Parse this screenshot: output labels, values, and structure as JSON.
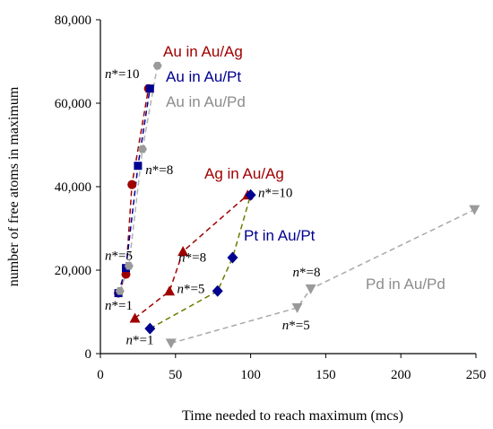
{
  "chart_data": {
    "type": "scatter",
    "xlabel": "Time needed to reach maximum (mcs)",
    "ylabel": "number of free atoms in maximum",
    "xlim": [
      0,
      250
    ],
    "ylim": [
      0,
      80000
    ],
    "x_ticks": [
      0,
      50,
      100,
      150,
      200,
      250
    ],
    "y_ticks": [
      0,
      20000,
      40000,
      60000,
      80000
    ],
    "x_tick_labels": [
      "0",
      "50",
      "100",
      "150",
      "200",
      "250"
    ],
    "y_tick_labels": [
      "0",
      "20,000",
      "40,000",
      "60,000",
      "80,000"
    ],
    "grid": false,
    "series": [
      {
        "name": "Au in Au/Ag",
        "color": "#a00000",
        "marker": "circle",
        "points": [
          [
            12,
            14500
          ],
          [
            17,
            19000
          ],
          [
            21,
            40500
          ],
          [
            32,
            63500
          ]
        ]
      },
      {
        "name": "Au in Au/Pt",
        "color": "#000090",
        "marker": "square",
        "points": [
          [
            12,
            14500
          ],
          [
            17,
            20500
          ],
          [
            25,
            45000
          ],
          [
            33,
            63500
          ]
        ]
      },
      {
        "name": "Au in Au/Pd",
        "color": "#9a9a9a",
        "marker": "hexagon",
        "points": [
          [
            13,
            15000
          ],
          [
            19,
            21000
          ],
          [
            28,
            49000
          ],
          [
            38,
            69000
          ]
        ]
      },
      {
        "name": "Ag in Au/Ag",
        "color": "#a00000",
        "marker": "triangle-up",
        "points": [
          [
            23,
            8500
          ],
          [
            46,
            15000
          ],
          [
            55,
            24500
          ],
          [
            98,
            38000
          ]
        ]
      },
      {
        "name": "Pt in Au/Pt",
        "color": "#000090",
        "marker": "diamond",
        "points": [
          [
            33,
            6000
          ],
          [
            78,
            15000
          ],
          [
            88,
            23000
          ],
          [
            100,
            38000
          ]
        ]
      },
      {
        "name": "Pd in Au/Pd",
        "color": "#9a9a9a",
        "marker": "triangle-down",
        "points": [
          [
            47,
            2500
          ],
          [
            131,
            11000
          ],
          [
            140,
            15500
          ],
          [
            249,
            34500
          ]
        ]
      }
    ],
    "line_colors": {
      "Au in Au/Ag": "#a00000",
      "Au in Au/Pt": "#000090",
      "Au in Au/Pd": "#b0b0b0",
      "Ag in Au/Ag": "#a00000",
      "Pt in Au/Pt": "#6b7a00",
      "Pd in Au/Pd": "#a8a8a8"
    },
    "legend_labels": [
      {
        "text": "Au in Au/Ag",
        "color": "#a00000"
      },
      {
        "text": "Au in Au/Pt",
        "color": "#000090"
      },
      {
        "text": "Au in Au/Pd",
        "color": "#8c8c8c"
      },
      {
        "text": "Ag in Au/Ag",
        "color": "#a00000"
      },
      {
        "text": "Pt in Au/Pt",
        "color": "#000090"
      },
      {
        "text": "Pd in Au/Pd",
        "color": "#8c8c8c"
      }
    ],
    "annotations": [
      {
        "n": "n",
        "rest": "*=10",
        "x": 3,
        "y": 66000
      },
      {
        "n": "n",
        "rest": "*=8",
        "x": 30,
        "y": 43000
      },
      {
        "n": "n",
        "rest": "*=5",
        "x": 3,
        "y": 22500
      },
      {
        "n": "n",
        "rest": "*=1",
        "x": 3,
        "y": 10500
      },
      {
        "n": "n",
        "rest": "*=8",
        "x": 52,
        "y": 22000
      },
      {
        "n": "n",
        "rest": "*=5",
        "x": 51,
        "y": 14500
      },
      {
        "n": "n",
        "rest": "*=1",
        "x": 17,
        "y": 2300
      },
      {
        "n": "n",
        "rest": "*=10",
        "x": 105,
        "y": 37500
      },
      {
        "n": "n",
        "rest": "*=8",
        "x": 128,
        "y": 18500
      },
      {
        "n": "n",
        "rest": "*=5",
        "x": 121,
        "y": 5800
      }
    ]
  }
}
